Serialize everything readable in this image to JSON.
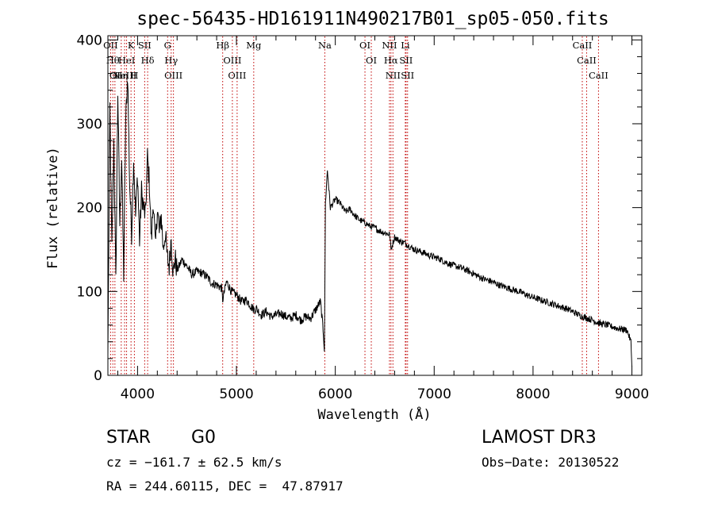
{
  "chart_data": {
    "type": "line",
    "title": "spec-56435-HD161911N490217B01_sp05-050.fits",
    "xlabel": "Wavelength (Å)",
    "ylabel": "Flux (relative)",
    "xlim": [
      3700,
      9100
    ],
    "ylim": [
      0,
      405
    ],
    "x_ticks": [
      4000,
      5000,
      6000,
      7000,
      8000,
      9000
    ],
    "y_ticks": [
      0,
      100,
      200,
      300,
      400
    ],
    "grid": false,
    "series": [
      {
        "x": [
          3700,
          3720,
          3740,
          3760,
          3780,
          3800,
          3820,
          3840,
          3860,
          3880,
          3900,
          3920,
          3940,
          3960,
          3980,
          4000,
          4020,
          4040,
          4060,
          4080,
          4100,
          4120,
          4140,
          4160,
          4180,
          4200,
          4220,
          4240,
          4260,
          4280,
          4300,
          4320,
          4340,
          4360,
          4380,
          4400,
          4450,
          4500,
          4550,
          4600,
          4650,
          4700,
          4750,
          4800,
          4850,
          4861,
          4900,
          4950,
          5000,
          5050,
          5100,
          5150,
          5183,
          5200,
          5250,
          5300,
          5350,
          5400,
          5450,
          5500,
          5550,
          5600,
          5650,
          5700,
          5750,
          5800,
          5850,
          5880,
          5890,
          5900,
          5920,
          5950,
          6000,
          6050,
          6100,
          6150,
          6200,
          6250,
          6300,
          6350,
          6400,
          6450,
          6500,
          6550,
          6563,
          6600,
          6650,
          6700,
          6750,
          6800,
          6850,
          6900,
          6950,
          7000,
          7050,
          7100,
          7150,
          7200,
          7250,
          7300,
          7350,
          7400,
          7450,
          7500,
          7550,
          7600,
          7650,
          7700,
          7750,
          7800,
          7850,
          7900,
          7950,
          8000,
          8050,
          8100,
          8150,
          8200,
          8250,
          8300,
          8350,
          8400,
          8450,
          8500,
          8550,
          8600,
          8650,
          8700,
          8750,
          8800,
          8850,
          8900,
          8950,
          8990,
          9000
        ],
        "y": [
          25,
          320,
          150,
          280,
          110,
          340,
          180,
          260,
          120,
          300,
          360,
          230,
          170,
          260,
          190,
          240,
          160,
          220,
          200,
          190,
          260,
          230,
          160,
          210,
          150,
          200,
          170,
          190,
          150,
          170,
          140,
          130,
          165,
          120,
          140,
          125,
          138,
          130,
          120,
          124,
          122,
          118,
          110,
          108,
          104,
          90,
          112,
          100,
          96,
          88,
          90,
          82,
          78,
          80,
          72,
          76,
          70,
          72,
          74,
          70,
          68,
          72,
          66,
          70,
          68,
          78,
          88,
          50,
          30,
          205,
          245,
          200,
          210,
          205,
          195,
          198,
          190,
          185,
          182,
          178,
          176,
          172,
          170,
          168,
          150,
          165,
          160,
          158,
          154,
          150,
          148,
          146,
          143,
          141,
          139,
          136,
          133,
          131,
          129,
          127,
          124,
          121,
          118,
          115,
          113,
          111,
          108,
          106,
          104,
          102,
          100,
          98,
          95,
          93,
          91,
          89,
          87,
          85,
          83,
          81,
          79,
          76,
          73,
          70,
          68,
          66,
          63,
          61,
          60,
          58,
          56,
          55,
          54,
          40,
          10
        ]
      }
    ],
    "line_markers": [
      {
        "wavelength": 3727,
        "label": "OII"
      },
      {
        "wavelength": 3750,
        "label": "Hθ"
      },
      {
        "wavelength": 3771,
        "label": "OI"
      },
      {
        "wavelength": 3835,
        "label": "Hη"
      },
      {
        "wavelength": 3869,
        "label": "NeIII"
      },
      {
        "wavelength": 3889,
        "label": "HeI"
      },
      {
        "wavelength": 3934,
        "label": "K"
      },
      {
        "wavelength": 3968,
        "label": "H"
      },
      {
        "wavelength": 4072,
        "label": "SII"
      },
      {
        "wavelength": 4102,
        "label": "Hδ"
      },
      {
        "wavelength": 4304,
        "label": "G"
      },
      {
        "wavelength": 4340,
        "label": "Hγ"
      },
      {
        "wavelength": 4363,
        "label": "OIII"
      },
      {
        "wavelength": 4861,
        "label": "Hβ"
      },
      {
        "wavelength": 4959,
        "label": "OIII"
      },
      {
        "wavelength": 5007,
        "label": "OIII"
      },
      {
        "wavelength": 5175,
        "label": "Mg"
      },
      {
        "wavelength": 5894,
        "label": "Na"
      },
      {
        "wavelength": 6300,
        "label": "OI"
      },
      {
        "wavelength": 6364,
        "label": "OI"
      },
      {
        "wavelength": 6548,
        "label": "NII"
      },
      {
        "wavelength": 6563,
        "label": "Hα"
      },
      {
        "wavelength": 6583,
        "label": "NII"
      },
      {
        "wavelength": 6708,
        "label": "Li"
      },
      {
        "wavelength": 6716,
        "label": "SII"
      },
      {
        "wavelength": 6731,
        "label": "SII"
      },
      {
        "wavelength": 8498,
        "label": "CaII"
      },
      {
        "wavelength": 8542,
        "label": "CaII"
      },
      {
        "wavelength": 8662,
        "label": "CaII"
      }
    ],
    "marker_color": "#c00000",
    "line_color": "#000000"
  },
  "info": {
    "class_label": "STAR",
    "subclass": "G0",
    "survey": "LAMOST DR3",
    "cz": "cz = −161.7 ± 62.5 km/s",
    "obs_date": "Obs−Date: 20130522",
    "coords": "RA = 244.60115, DEC =  47.87917"
  }
}
